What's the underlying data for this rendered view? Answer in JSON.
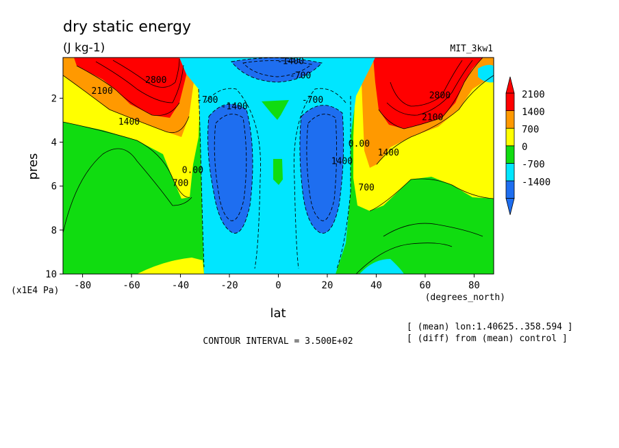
{
  "chart_data": {
    "type": "contour",
    "title": "dry static energy",
    "units": "(J kg-1)",
    "model_label": "MIT_3kw1",
    "xlabel": "lat",
    "x_units": "(degrees_north)",
    "ylabel": "pres",
    "y_units": "(x1E4 Pa)",
    "xlim": [
      -88,
      88
    ],
    "ylim": [
      10,
      0.15
    ],
    "y_inverted": true,
    "x_ticks": [
      -80,
      -60,
      -40,
      -20,
      0,
      20,
      40,
      60,
      80
    ],
    "x_tick_labels": [
      "-80",
      "-60",
      "-40",
      "-20",
      "0",
      "20",
      "40",
      "60",
      "80"
    ],
    "y_ticks": [
      2,
      4,
      6,
      8,
      10
    ],
    "y_tick_labels": [
      "2",
      "4",
      "6",
      "8",
      "10"
    ],
    "contour_interval": 350,
    "contour_interval_text": "CONTOUR INTERVAL = 3.500E+02",
    "colorbar": {
      "labels": [
        "2100",
        "1400",
        "700",
        "0",
        "-700",
        "-1400"
      ],
      "levels": [
        -1400,
        -700,
        0,
        700,
        1400,
        2100
      ],
      "colors": [
        "#1e6ef0",
        "#00e6ff",
        "#10dc10",
        "#ffff00",
        "#ff9900",
        "#ff0000"
      ],
      "extend": "both"
    },
    "contour_labels": [
      {
        "text": "-1400",
        "lat": 5,
        "pres": 0.45
      },
      {
        "text": "-700",
        "lat": 9,
        "pres": 1.1
      },
      {
        "text": "-700",
        "lat": -29,
        "pres": 2.2
      },
      {
        "text": "-1400",
        "lat": -18,
        "pres": 2.5
      },
      {
        "text": "-700",
        "lat": 14,
        "pres": 2.2
      },
      {
        "text": "1400",
        "lat": 26,
        "pres": 5.0
      },
      {
        "text": "0.00",
        "lat": 33,
        "pres": 4.2
      },
      {
        "text": "700",
        "lat": 36,
        "pres": 6.2
      },
      {
        "text": "1400",
        "lat": 45,
        "pres": 4.6
      },
      {
        "text": "2100",
        "lat": 63,
        "pres": 3.0
      },
      {
        "text": "2800",
        "lat": 66,
        "pres": 2.0
      },
      {
        "text": "2100",
        "lat": -72,
        "pres": 1.8
      },
      {
        "text": "2800",
        "lat": -50,
        "pres": 1.3
      },
      {
        "text": "1400",
        "lat": -61,
        "pres": 3.2
      },
      {
        "text": "0.00",
        "lat": -35,
        "pres": 5.4
      },
      {
        "text": "700",
        "lat": -40,
        "pres": 6.0
      }
    ],
    "annotations": [
      "[ (mean) lon:1.40625..358.594 ]",
      "[ (diff) from (mean) control ]"
    ],
    "grid": false
  }
}
